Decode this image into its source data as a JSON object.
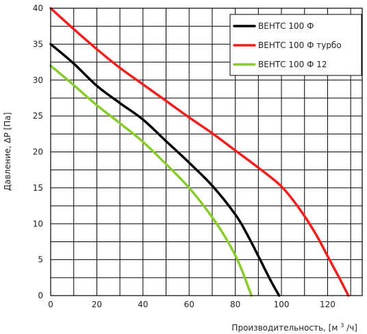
{
  "chart_data": {
    "type": "line",
    "xlabel": "Производительность, [м",
    "xlabel_sup": "3",
    "xlabel_tail": "/ч]",
    "ylabel": "Давление, ΔР [Па]",
    "xlim": [
      0,
      135
    ],
    "ylim": [
      0,
      40
    ],
    "x_ticks": [
      0,
      20,
      40,
      60,
      80,
      100,
      120
    ],
    "y_ticks": [
      0,
      5,
      10,
      15,
      20,
      25,
      30,
      35,
      40
    ],
    "grid": true,
    "legend_position": "top-right",
    "series": [
      {
        "name": "ВЕНТС 100 Ф",
        "color": "#000000",
        "x": [
          0,
          10,
          20,
          30,
          40,
          50,
          60,
          70,
          80,
          85,
          90,
          95,
          99
        ],
        "y": [
          35,
          32.3,
          29.2,
          26.8,
          24.5,
          21.5,
          18.5,
          15.3,
          11.3,
          8.6,
          5.5,
          2.3,
          0
        ]
      },
      {
        "name": "ВЕНТС 100 Ф турбо",
        "color": "#ff1a1a",
        "x": [
          0,
          10,
          20,
          30,
          40,
          50,
          60,
          70,
          80,
          90,
          100,
          108,
          115,
          120,
          125,
          129
        ],
        "y": [
          40,
          37.1,
          34.3,
          31.7,
          29.4,
          27.1,
          24.8,
          22.6,
          20.2,
          17.8,
          15.2,
          12,
          8.5,
          5.5,
          2.5,
          0
        ]
      },
      {
        "name": "ВЕНТС 100 Ф 12",
        "color": "#88cc2a",
        "x": [
          0,
          10,
          20,
          30,
          40,
          50,
          60,
          70,
          77,
          82,
          87
        ],
        "y": [
          32,
          29.3,
          26.5,
          24,
          21.4,
          18.3,
          15,
          10.9,
          7.4,
          4.2,
          0
        ]
      }
    ]
  }
}
